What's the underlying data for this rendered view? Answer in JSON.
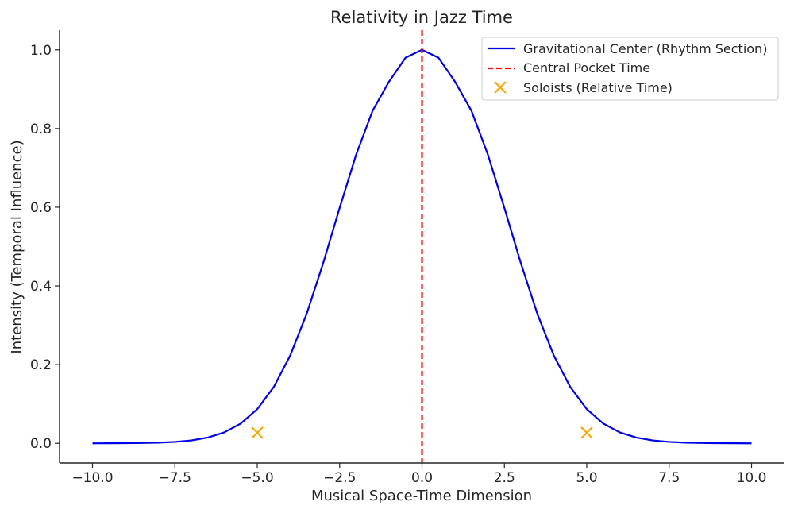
{
  "chart_data": {
    "type": "line",
    "title": "Relativity in Jazz Time",
    "xlabel": "Musical Space-Time Dimension",
    "ylabel": "Intensity (Temporal Influence)",
    "xlim": [
      -11,
      11
    ],
    "ylim": [
      -0.05,
      1.05
    ],
    "xticks": [
      -10,
      -7.5,
      -5,
      -2.5,
      0,
      2.5,
      5,
      7.5,
      10
    ],
    "xtick_labels": [
      "−10.0",
      "−7.5",
      "−5.0",
      "−2.5",
      "0.0",
      "2.5",
      "5.0",
      "7.5",
      "10.0"
    ],
    "yticks": [
      0,
      0.2,
      0.4,
      0.6,
      0.8,
      1.0
    ],
    "ytick_labels": [
      "0.0",
      "0.2",
      "0.4",
      "0.6",
      "0.8",
      "1.0"
    ],
    "grid": false,
    "legend_position": "top-right",
    "series": [
      {
        "name": "Gravitational Center (Rhythm Section)",
        "kind": "line",
        "color": "#0000e6",
        "x": [
          -10,
          -9.5,
          -9,
          -8.5,
          -8,
          -7.5,
          -7,
          -6.5,
          -6,
          -5.5,
          -5,
          -4.5,
          -4,
          -3.5,
          -3,
          -2.5,
          -2,
          -1.5,
          -1,
          -0.5,
          0,
          0.5,
          1,
          1.5,
          2,
          2.5,
          3,
          3.5,
          4,
          4.5,
          5,
          5.5,
          6,
          6.5,
          7,
          7.5,
          8,
          8.5,
          9,
          9.5,
          10
        ],
        "y": [
          0.0,
          0.0002,
          0.0004,
          0.0008,
          0.0017,
          0.0036,
          0.0074,
          0.0147,
          0.0278,
          0.0503,
          0.0868,
          0.1431,
          0.2231,
          0.3291,
          0.4578,
          0.5982,
          0.7334,
          0.8453,
          0.9194,
          0.9801,
          1.0,
          0.9801,
          0.9194,
          0.8453,
          0.7334,
          0.5982,
          0.4578,
          0.3291,
          0.2231,
          0.1431,
          0.0868,
          0.0503,
          0.0278,
          0.0147,
          0.0074,
          0.0036,
          0.0017,
          0.0008,
          0.0004,
          0.0002,
          0.0
        ]
      },
      {
        "name": "Central Pocket Time",
        "kind": "vline",
        "color": "#ff0000",
        "x": 0
      },
      {
        "name": "Soloists (Relative Time)",
        "kind": "scatter",
        "marker": "x",
        "color": "#ffa500",
        "x": [
          -5,
          5
        ],
        "y": [
          0.027,
          0.027
        ]
      }
    ]
  }
}
